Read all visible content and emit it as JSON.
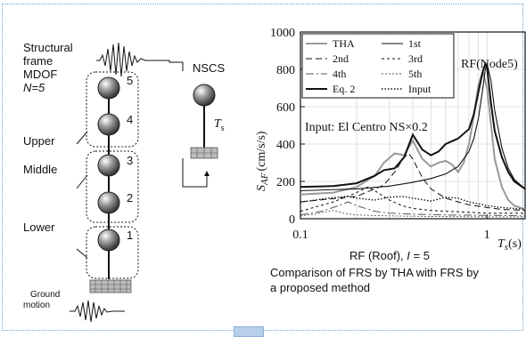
{
  "left": {
    "title_lines": [
      "Structural",
      "frame",
      "MDOF",
      "N=5"
    ],
    "groups": [
      "Upper",
      "Middle",
      "Lower"
    ],
    "masses": [
      "5",
      "4",
      "3",
      "2",
      "1"
    ],
    "ground_lines": [
      "Ground",
      "motion"
    ],
    "nscs_label": "NSCS",
    "ts_label": "T",
    "ts_sub": "s"
  },
  "chart_data": {
    "type": "line",
    "title": "RF(Node5)",
    "annotation": "Input: El Centro NS×0.2",
    "xlabel": "T",
    "xlabel_sub": "s",
    "xlabel_unit": "(s)",
    "ylabel": "S",
    "ylabel_sub": "AF",
    "ylabel_unit": "(cm/s/s)",
    "xscale": "log",
    "xlim": [
      0.1,
      1.6
    ],
    "ylim": [
      0,
      1000
    ],
    "yticks": [
      "0",
      "200",
      "400",
      "600",
      "800",
      "1000"
    ],
    "xticks": [
      "0.1",
      "1"
    ],
    "legend": [
      "THA",
      "1st",
      "2nd",
      "3rd",
      "4th",
      "5th",
      "Eq. 2",
      "Input"
    ],
    "series": [
      {
        "name": "THA",
        "x": [
          0.1,
          0.15,
          0.2,
          0.25,
          0.28,
          0.32,
          0.36,
          0.4,
          0.45,
          0.5,
          0.55,
          0.6,
          0.65,
          0.7,
          0.75,
          0.8,
          0.85,
          0.9,
          0.95,
          1.0,
          1.1,
          1.2,
          1.3,
          1.4,
          1.6
        ],
        "y": [
          130,
          140,
          170,
          230,
          300,
          350,
          340,
          420,
          320,
          280,
          300,
          310,
          290,
          250,
          300,
          400,
          550,
          720,
          790,
          700,
          320,
          170,
          100,
          70,
          50
        ]
      },
      {
        "name": "1st",
        "x": [
          0.1,
          0.2,
          0.3,
          0.4,
          0.5,
          0.6,
          0.7,
          0.8,
          0.85,
          0.9,
          0.95,
          0.98,
          1.0,
          1.05,
          1.1,
          1.2,
          1.3,
          1.4,
          1.6
        ],
        "y": [
          150,
          160,
          175,
          195,
          215,
          240,
          280,
          360,
          430,
          540,
          700,
          800,
          830,
          740,
          580,
          380,
          270,
          210,
          160
        ]
      },
      {
        "name": "2nd",
        "x": [
          0.1,
          0.2,
          0.28,
          0.32,
          0.36,
          0.38,
          0.4,
          0.45,
          0.5,
          0.6,
          0.7,
          0.8,
          1.0,
          1.2,
          1.6
        ],
        "y": [
          90,
          120,
          180,
          250,
          330,
          350,
          320,
          220,
          160,
          110,
          90,
          75,
          60,
          50,
          45
        ]
      },
      {
        "name": "3rd",
        "x": [
          0.1,
          0.15,
          0.2,
          0.23,
          0.25,
          0.3,
          0.35,
          0.4,
          0.5,
          0.6,
          0.8,
          1.0,
          1.6
        ],
        "y": [
          40,
          90,
          140,
          170,
          150,
          100,
          70,
          55,
          45,
          40,
          35,
          30,
          30
        ]
      },
      {
        "name": "4th",
        "x": [
          0.1,
          0.13,
          0.16,
          0.18,
          0.2,
          0.25,
          0.3,
          0.4,
          0.6,
          1.0,
          1.6
        ],
        "y": [
          20,
          40,
          70,
          90,
          70,
          40,
          30,
          25,
          20,
          18,
          15
        ]
      },
      {
        "name": "5th",
        "x": [
          0.1,
          0.12,
          0.14,
          0.15,
          0.17,
          0.2,
          0.3,
          0.5,
          1.0,
          1.6
        ],
        "y": [
          15,
          25,
          40,
          45,
          30,
          20,
          15,
          12,
          10,
          10
        ]
      },
      {
        "name": "Eq. 2",
        "x": [
          0.1,
          0.15,
          0.2,
          0.25,
          0.28,
          0.32,
          0.36,
          0.4,
          0.45,
          0.5,
          0.55,
          0.6,
          0.7,
          0.8,
          0.85,
          0.9,
          0.95,
          0.98,
          1.0,
          1.05,
          1.1,
          1.2,
          1.3,
          1.4,
          1.6
        ],
        "y": [
          170,
          175,
          190,
          230,
          260,
          270,
          330,
          450,
          370,
          340,
          360,
          400,
          430,
          480,
          560,
          680,
          790,
          830,
          810,
          620,
          470,
          330,
          250,
          200,
          160
        ]
      },
      {
        "name": "Input",
        "x": [
          0.1,
          0.12,
          0.14,
          0.16,
          0.18,
          0.2,
          0.25,
          0.3,
          0.35,
          0.4,
          0.5,
          0.6,
          0.7,
          0.8,
          0.9,
          1.0,
          1.2,
          1.4,
          1.6
        ],
        "y": [
          90,
          100,
          110,
          115,
          120,
          110,
          100,
          115,
          120,
          110,
          95,
          115,
          110,
          90,
          80,
          70,
          60,
          55,
          50
        ]
      }
    ]
  },
  "caption": {
    "subtitle": "RF (Roof), ",
    "subtitle_i": "I",
    "subtitle_rest": " = 5",
    "lines": [
      "Comparison of FRS by THA with FRS by",
      "a proposed method"
    ]
  }
}
